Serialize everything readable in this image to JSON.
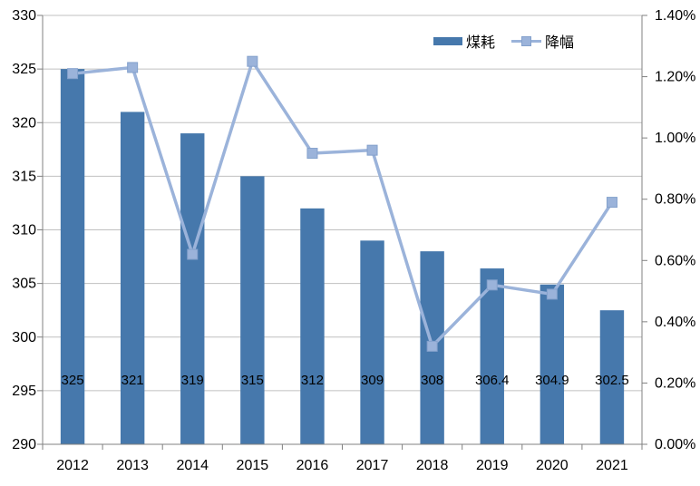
{
  "chart_data": {
    "type": "combo",
    "title": "",
    "categories": [
      "2012",
      "2013",
      "2014",
      "2015",
      "2016",
      "2017",
      "2018",
      "2019",
      "2020",
      "2021"
    ],
    "series": [
      {
        "name": "煤耗",
        "type": "bar",
        "axis": "left",
        "values": [
          325,
          321,
          319,
          315,
          312,
          309,
          308,
          306.4,
          304.9,
          302.5
        ],
        "data_labels": [
          "325",
          "321",
          "319",
          "315",
          "312",
          "309",
          "308",
          "306.4",
          "304.9",
          "302.5"
        ],
        "color": "#4678AC"
      },
      {
        "name": "降幅",
        "type": "line",
        "axis": "right",
        "values_percent": [
          1.21,
          1.23,
          0.62,
          1.25,
          0.95,
          0.96,
          0.32,
          0.52,
          0.49,
          0.79
        ],
        "color": "#9BB3DA",
        "marker": "square",
        "marker_border_color": "#84A1CC"
      }
    ],
    "left_axis": {
      "min": 290,
      "max": 330,
      "step": 5,
      "tick_labels": [
        "330",
        "325",
        "320",
        "315",
        "310",
        "305",
        "300",
        "295",
        "290"
      ]
    },
    "right_axis": {
      "min": 0,
      "max": 1.4,
      "step": 0.2,
      "format": "percent",
      "tick_labels": [
        "1.40%",
        "1.20%",
        "1.00%",
        "0.80%",
        "0.60%",
        "0.40%",
        "0.20%",
        "0.00%"
      ]
    },
    "legend": {
      "position": "top",
      "entries": [
        "煤耗",
        "降幅"
      ]
    },
    "grid": true,
    "colors": {
      "gridline": "#C0C0C0",
      "axis": "#808080",
      "text": "#000000",
      "background": "#FFFFFF"
    }
  }
}
